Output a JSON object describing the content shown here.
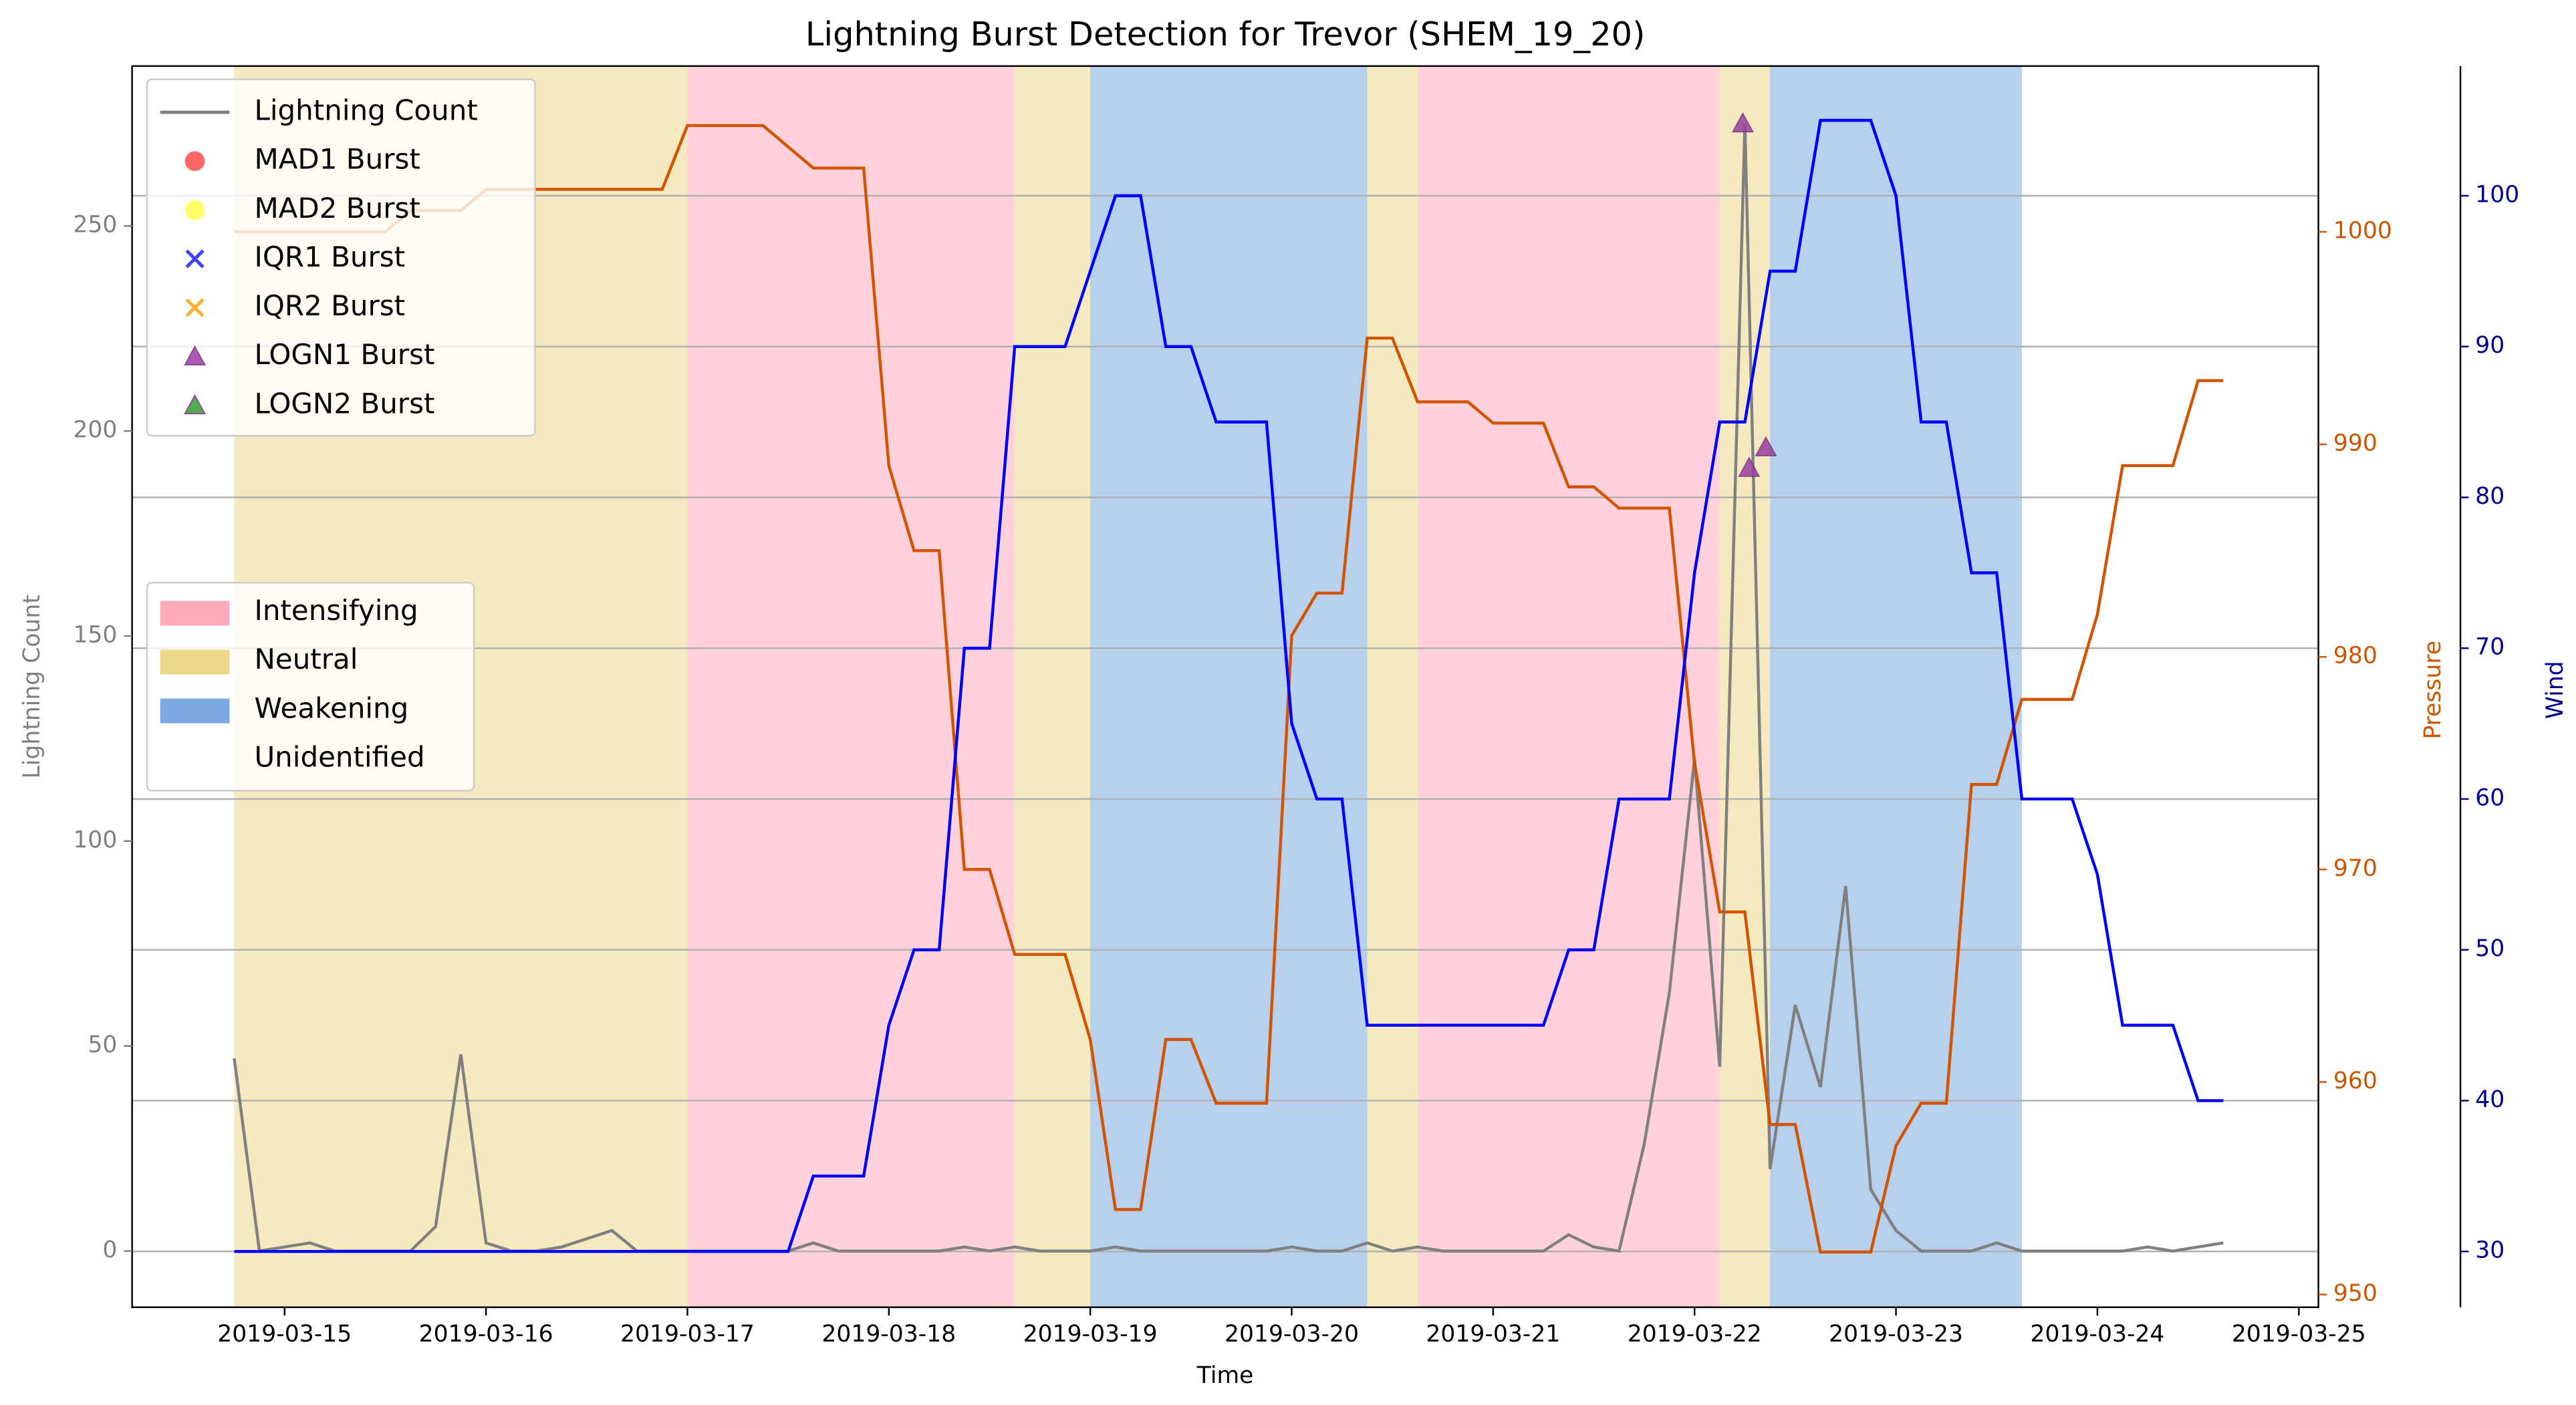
{
  "chart_data": {
    "type": "line",
    "title": "Lightning Burst Detection for Trevor (SHEM_19_20)",
    "xlabel": "Time",
    "ylabel": "Lightning Count",
    "y2label": "Pressure",
    "y3label": "Wind",
    "x": [
      "2019-03-14T18:00",
      "2019-03-14T21:00",
      "2019-03-15T00:00",
      "2019-03-15T03:00",
      "2019-03-15T06:00",
      "2019-03-15T09:00",
      "2019-03-15T12:00",
      "2019-03-15T15:00",
      "2019-03-15T18:00",
      "2019-03-15T21:00",
      "2019-03-16T00:00",
      "2019-03-16T03:00",
      "2019-03-16T06:00",
      "2019-03-16T09:00",
      "2019-03-16T12:00",
      "2019-03-16T15:00",
      "2019-03-16T18:00",
      "2019-03-16T21:00",
      "2019-03-17T00:00",
      "2019-03-17T03:00",
      "2019-03-17T06:00",
      "2019-03-17T09:00",
      "2019-03-17T12:00",
      "2019-03-17T15:00",
      "2019-03-17T18:00",
      "2019-03-17T21:00",
      "2019-03-18T00:00",
      "2019-03-18T03:00",
      "2019-03-18T06:00",
      "2019-03-18T09:00",
      "2019-03-18T12:00",
      "2019-03-18T15:00",
      "2019-03-18T18:00",
      "2019-03-18T21:00",
      "2019-03-19T00:00",
      "2019-03-19T03:00",
      "2019-03-19T06:00",
      "2019-03-19T09:00",
      "2019-03-19T12:00",
      "2019-03-19T15:00",
      "2019-03-19T18:00",
      "2019-03-19T21:00",
      "2019-03-20T00:00",
      "2019-03-20T03:00",
      "2019-03-20T06:00",
      "2019-03-20T09:00",
      "2019-03-20T12:00",
      "2019-03-20T15:00",
      "2019-03-20T18:00",
      "2019-03-20T21:00",
      "2019-03-21T00:00",
      "2019-03-21T03:00",
      "2019-03-21T06:00",
      "2019-03-21T09:00",
      "2019-03-21T12:00",
      "2019-03-21T15:00",
      "2019-03-21T18:00",
      "2019-03-21T21:00",
      "2019-03-22T00:00",
      "2019-03-22T03:00",
      "2019-03-22T06:00",
      "2019-03-22T09:00",
      "2019-03-22T12:00",
      "2019-03-22T15:00",
      "2019-03-22T18:00",
      "2019-03-22T21:00",
      "2019-03-23T00:00",
      "2019-03-23T03:00",
      "2019-03-23T06:00",
      "2019-03-23T09:00",
      "2019-03-23T12:00",
      "2019-03-23T15:00",
      "2019-03-23T18:00",
      "2019-03-23T21:00",
      "2019-03-24T00:00",
      "2019-03-24T03:00",
      "2019-03-24T06:00",
      "2019-03-24T09:00",
      "2019-03-24T12:00",
      "2019-03-24T15:00"
    ],
    "xlim": [
      "2019-03-14T05:50",
      "2019-03-25T02:20"
    ],
    "xticks": [
      {
        "value": "2019-03-15T00:00",
        "label": "2019-03-15"
      },
      {
        "value": "2019-03-16T00:00",
        "label": "2019-03-16"
      },
      {
        "value": "2019-03-17T00:00",
        "label": "2019-03-17"
      },
      {
        "value": "2019-03-18T00:00",
        "label": "2019-03-18"
      },
      {
        "value": "2019-03-19T00:00",
        "label": "2019-03-19"
      },
      {
        "value": "2019-03-20T00:00",
        "label": "2019-03-20"
      },
      {
        "value": "2019-03-21T00:00",
        "label": "2019-03-21"
      },
      {
        "value": "2019-03-22T00:00",
        "label": "2019-03-22"
      },
      {
        "value": "2019-03-23T00:00",
        "label": "2019-03-23"
      },
      {
        "value": "2019-03-24T00:00",
        "label": "2019-03-24"
      },
      {
        "value": "2019-03-25T00:00",
        "label": "2019-03-25"
      }
    ],
    "ylim": [
      -13.7,
      289
    ],
    "yticks": [
      0,
      50,
      100,
      150,
      200,
      250
    ],
    "y2lim": [
      949.4,
      1007.8
    ],
    "y2ticks": [
      950,
      960,
      970,
      980,
      990,
      1000
    ],
    "y2color": "#cc5500",
    "y3lim": [
      26.3,
      108.6
    ],
    "y3ticks": [
      30,
      40,
      50,
      60,
      70,
      80,
      90,
      100
    ],
    "y3color": "#00008b",
    "grid": "y3",
    "series": [
      {
        "name": "Lightning Count",
        "color": "#808080",
        "axis": "y",
        "values": [
          47,
          0,
          1,
          2,
          0,
          0,
          0,
          0,
          6,
          48,
          2,
          0,
          0,
          1,
          3,
          5,
          0,
          0,
          0,
          0,
          0,
          0,
          0,
          2,
          0,
          0,
          0,
          0,
          0,
          1,
          0,
          1,
          0,
          0,
          0,
          1,
          0,
          0,
          0,
          0,
          0,
          0,
          1,
          0,
          0,
          2,
          0,
          1,
          0,
          0,
          0,
          0,
          0,
          4,
          1,
          0,
          26,
          63,
          120,
          45,
          275,
          20,
          60,
          40,
          89,
          15,
          5,
          0,
          0,
          0,
          2,
          0,
          0,
          0,
          0,
          0,
          1,
          0,
          1,
          2
        ]
      },
      {
        "color": "#d35400",
        "axis": "y2",
        "values": [
          1000,
          1000,
          1000,
          1000,
          1000,
          1000,
          1000,
          1001,
          1001,
          1001,
          1002,
          1002,
          1002,
          1002,
          1002,
          1002,
          1002,
          1002,
          1005,
          1005,
          1005,
          1005,
          1004,
          1003,
          1003,
          1003,
          989,
          985,
          985,
          970,
          970,
          966,
          966,
          966,
          962,
          954,
          954,
          962,
          962,
          959,
          959,
          959,
          981,
          983,
          983,
          995,
          995,
          992,
          992,
          992,
          991,
          991,
          991,
          988,
          988,
          987,
          987,
          987,
          975,
          968,
          968,
          958,
          958,
          952,
          952,
          952,
          957,
          959,
          959,
          974,
          974,
          978,
          978,
          978,
          982,
          989,
          989,
          989,
          993,
          993
        ]
      },
      {
        "color": "#0000ff",
        "axis": "y3",
        "values": [
          30,
          30,
          30,
          30,
          30,
          30,
          30,
          30,
          30,
          30,
          30,
          30,
          30,
          30,
          30,
          30,
          30,
          30,
          30,
          30,
          30,
          30,
          30,
          35,
          35,
          35,
          45,
          50,
          50,
          70,
          70,
          90,
          90,
          90,
          95,
          100,
          100,
          90,
          90,
          85,
          85,
          85,
          65,
          60,
          60,
          45,
          45,
          45,
          45,
          45,
          45,
          45,
          45,
          50,
          50,
          60,
          60,
          60,
          75,
          85,
          85,
          95,
          95,
          105,
          105,
          105,
          100,
          85,
          85,
          75,
          75,
          60,
          60,
          60,
          55,
          45,
          45,
          45,
          40,
          40
        ]
      }
    ],
    "bursts": [
      {
        "name": "MAD1 Burst",
        "color": "#ff4040",
        "marker": "circle",
        "points": []
      },
      {
        "name": "MAD2 Burst",
        "color": "#ffff40",
        "marker": "circle",
        "points": []
      },
      {
        "name": "IQR1 Burst",
        "color": "#4040ff",
        "marker": "cross",
        "points": []
      },
      {
        "name": "IQR2 Burst",
        "color": "#ffb030",
        "marker": "cross",
        "points": []
      },
      {
        "name": "LOGN1 Burst",
        "color": "#9a3fa0",
        "marker": "triangle",
        "points": [
          {
            "x": "2019-03-22T05:45",
            "y": 275
          },
          {
            "x": "2019-03-22T06:30",
            "y": 191
          },
          {
            "x": "2019-03-22T08:30",
            "y": 196
          }
        ]
      },
      {
        "name": "LOGN2 Burst",
        "color": "#30a030",
        "marker": "triangle",
        "points": []
      }
    ],
    "phases": [
      {
        "name": "Intensifying",
        "color": "#ffadbd"
      },
      {
        "name": "Neutral",
        "color": "#ecd98a"
      },
      {
        "name": "Weakening",
        "color": "#7aaadf"
      },
      {
        "name": "Unidentified",
        "color": "#ffffff"
      }
    ],
    "phase_spans": [
      {
        "phase": 1,
        "start": "2019-03-14T18:00",
        "end": "2019-03-17T00:00"
      },
      {
        "phase": 0,
        "start": "2019-03-17T00:00",
        "end": "2019-03-18T15:00"
      },
      {
        "phase": 1,
        "start": "2019-03-18T15:00",
        "end": "2019-03-19T00:00"
      },
      {
        "phase": 2,
        "start": "2019-03-19T00:00",
        "end": "2019-03-20T09:00"
      },
      {
        "phase": 1,
        "start": "2019-03-20T09:00",
        "end": "2019-03-20T15:00"
      },
      {
        "phase": 0,
        "start": "2019-03-20T15:00",
        "end": "2019-03-22T03:00"
      },
      {
        "phase": 1,
        "start": "2019-03-22T03:00",
        "end": "2019-03-22T09:00"
      },
      {
        "phase": 2,
        "start": "2019-03-22T09:00",
        "end": "2019-03-23T15:00"
      }
    ]
  }
}
